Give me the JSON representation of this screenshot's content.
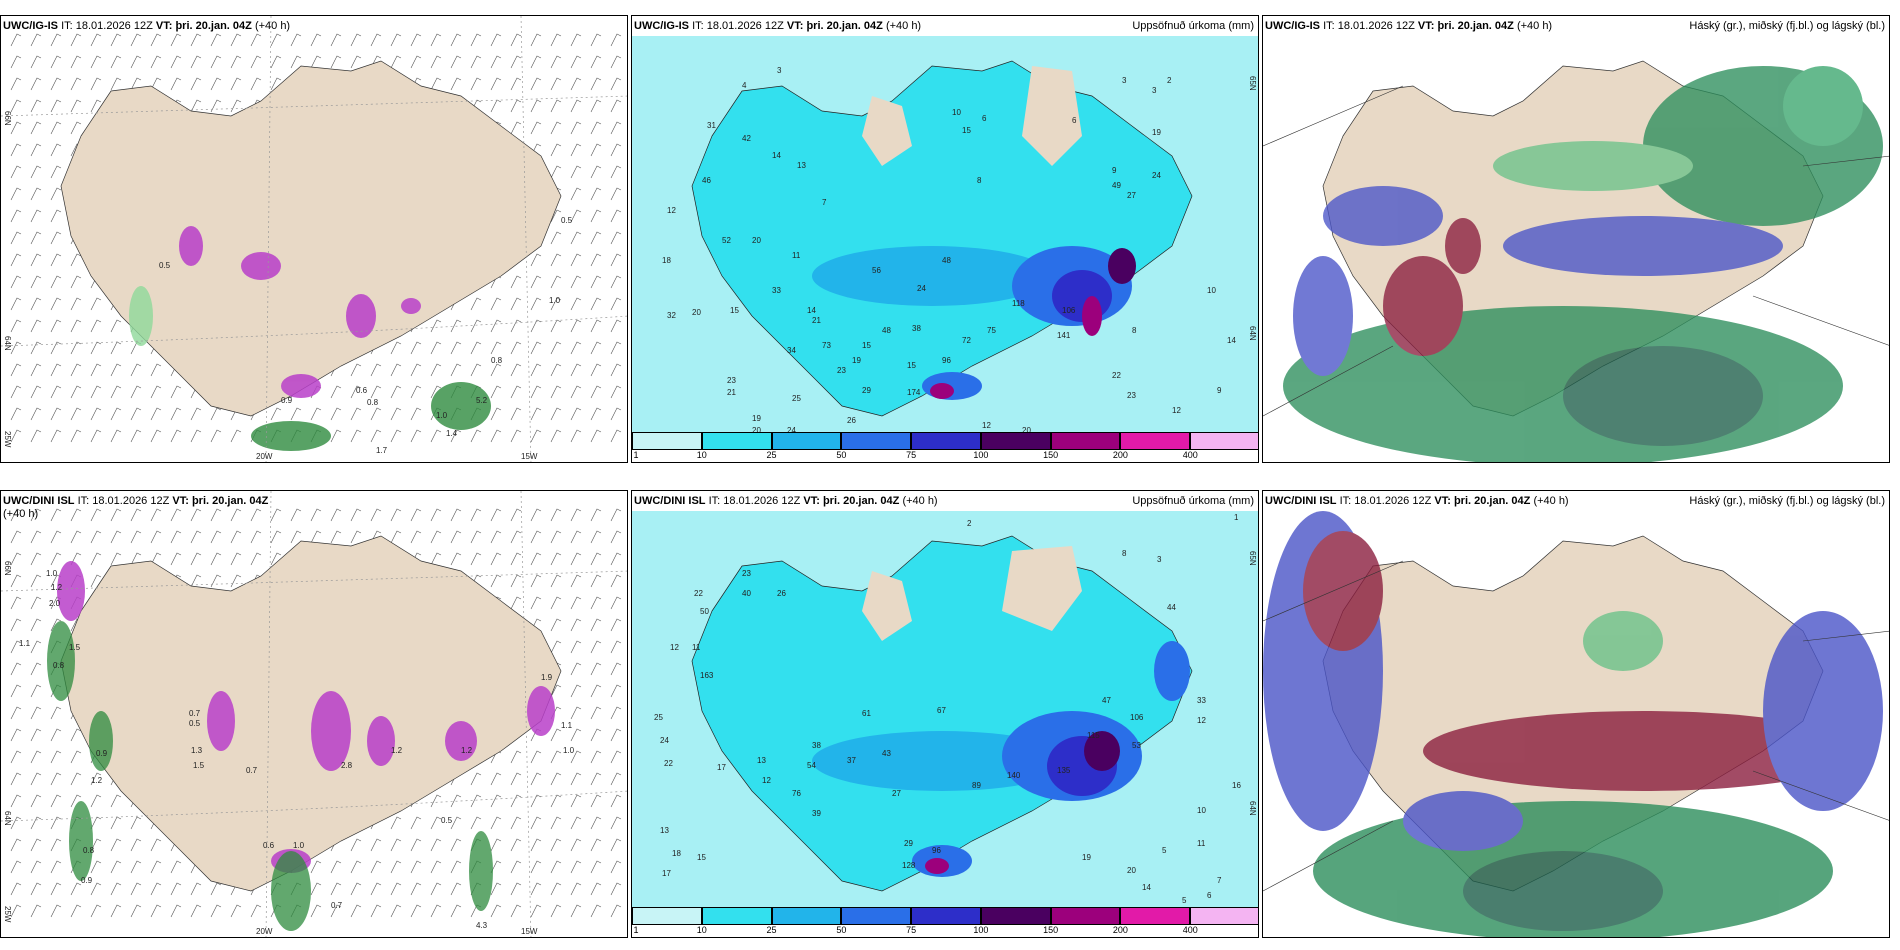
{
  "panels": [
    {
      "id": "p1",
      "model": "UWC/IG-IS",
      "it_prefix": "IT:",
      "it": "18.01.2026 12Z",
      "vt_prefix": "VT:",
      "vt": "þri. 20.jan. 04Z",
      "lead": "(+40 h)",
      "right_title": "",
      "coords": [
        "66N",
        "64N",
        "25W",
        "20W",
        "15W"
      ],
      "values": [
        "0.5",
        "0.5",
        "0.6",
        "0.8",
        "0.9",
        "1.0",
        "1.0",
        "1.7",
        "5.2",
        "1.4",
        "0.8"
      ]
    },
    {
      "id": "p2",
      "model": "UWC/IG-IS",
      "it_prefix": "IT:",
      "it": "18.01.2026 12Z",
      "vt_prefix": "VT:",
      "vt": "þri. 20.jan. 04Z",
      "lead": "(+40 h)",
      "right_title": "Uppsöfnuð úrkoma (mm)",
      "coords": [
        "65N",
        "64N"
      ],
      "values": [
        "3",
        "4",
        "2",
        "31",
        "42",
        "14",
        "10",
        "15",
        "6",
        "8",
        "46",
        "12",
        "9",
        "13",
        "3",
        "7",
        "6",
        "52",
        "20",
        "48",
        "11",
        "18",
        "56",
        "33",
        "49",
        "24",
        "32",
        "20",
        "15",
        "14",
        "21",
        "48",
        "38",
        "15",
        "73",
        "34",
        "19",
        "15",
        "23",
        "21",
        "25",
        "19",
        "20",
        "24",
        "26",
        "29",
        "23",
        "174",
        "96",
        "72",
        "75",
        "118",
        "106",
        "141",
        "12",
        "20",
        "22",
        "23",
        "12",
        "9",
        "10",
        "14",
        "8",
        "27",
        "24",
        "19",
        "3"
      ]
    },
    {
      "id": "p3",
      "model": "UWC/IG-IS",
      "it_prefix": "IT:",
      "it": "18.01.2026 12Z",
      "vt_prefix": "VT:",
      "vt": "þri. 20.jan. 04Z",
      "lead": "(+40 h)",
      "right_title": "Háský (gr.), miðský (fj.bl.) og lágský (bl.)",
      "coords": [],
      "values": []
    },
    {
      "id": "p4",
      "model": "UWC/DINI ISL",
      "it_prefix": "IT:",
      "it": "18.01.2026 12Z",
      "vt_prefix": "VT:",
      "vt": "þri. 20.jan. 04Z",
      "lead": "(+40 h)",
      "right_title": "",
      "coords": [
        "66N",
        "64N",
        "25W",
        "20W",
        "15W"
      ],
      "values": [
        "1.0",
        "1.2",
        "2.0",
        "1.1",
        "1.5",
        "0.8",
        "0.9",
        "1.2",
        "0.8",
        "0.9",
        "0.7",
        "0.5",
        "1.3",
        "1.5",
        "0.7",
        "1.2",
        "2.8",
        "1.2",
        "0.6",
        "1.0",
        "0.5",
        "1.9",
        "1.1",
        "1.0",
        "4.3",
        "0.7"
      ]
    },
    {
      "id": "p5",
      "model": "UWC/DINI ISL",
      "it_prefix": "IT:",
      "it": "18.01.2026 12Z",
      "vt_prefix": "VT:",
      "vt": "þri. 20.jan. 04Z",
      "lead": "(+40 h)",
      "right_title": "Uppsöfnuð úrkoma (mm)",
      "coords": [
        "65N",
        "64N"
      ],
      "values": [
        "2",
        "1",
        "8",
        "3",
        "23",
        "40",
        "22",
        "50",
        "12",
        "11",
        "26",
        "163",
        "25",
        "24",
        "22",
        "17",
        "13",
        "18",
        "17",
        "13",
        "12",
        "15",
        "38",
        "54",
        "76",
        "39",
        "61",
        "37",
        "43",
        "27",
        "29",
        "128",
        "96",
        "89",
        "140",
        "135",
        "115",
        "47",
        "106",
        "53",
        "44",
        "67",
        "33",
        "12",
        "16",
        "10",
        "11",
        "5",
        "7",
        "19",
        "20",
        "14",
        "5",
        "6"
      ]
    },
    {
      "id": "p6",
      "model": "UWC/DINI ISL",
      "it_prefix": "IT:",
      "it": "18.01.2026 12Z",
      "vt_prefix": "VT:",
      "vt": "þri. 20.jan. 04Z",
      "lead": "(+40 h)",
      "right_title": "Háský (gr.), miðský (fj.bl.) og lágský (bl.)",
      "coords": [],
      "values": []
    }
  ],
  "colorbar": {
    "labels": [
      "1",
      "10",
      "25",
      "50",
      "75",
      "100",
      "150",
      "200",
      "400"
    ],
    "colors": [
      "#c8f4f6",
      "#33e0ee",
      "#22b4ea",
      "#2a6fe8",
      "#2d2ec9",
      "#4a0060",
      "#9c007c",
      "#e21aa8",
      "#f4b4f2"
    ]
  },
  "colors": {
    "land": "#e8d9c6",
    "sea_precip": "#a0eef3",
    "wind_green": "#1f7a2a",
    "snow_magenta": "#b83fc9",
    "cloud_high": "#2d8e5c",
    "cloud_mid": "#8b1f3f",
    "cloud_low": "#4a54c8"
  }
}
